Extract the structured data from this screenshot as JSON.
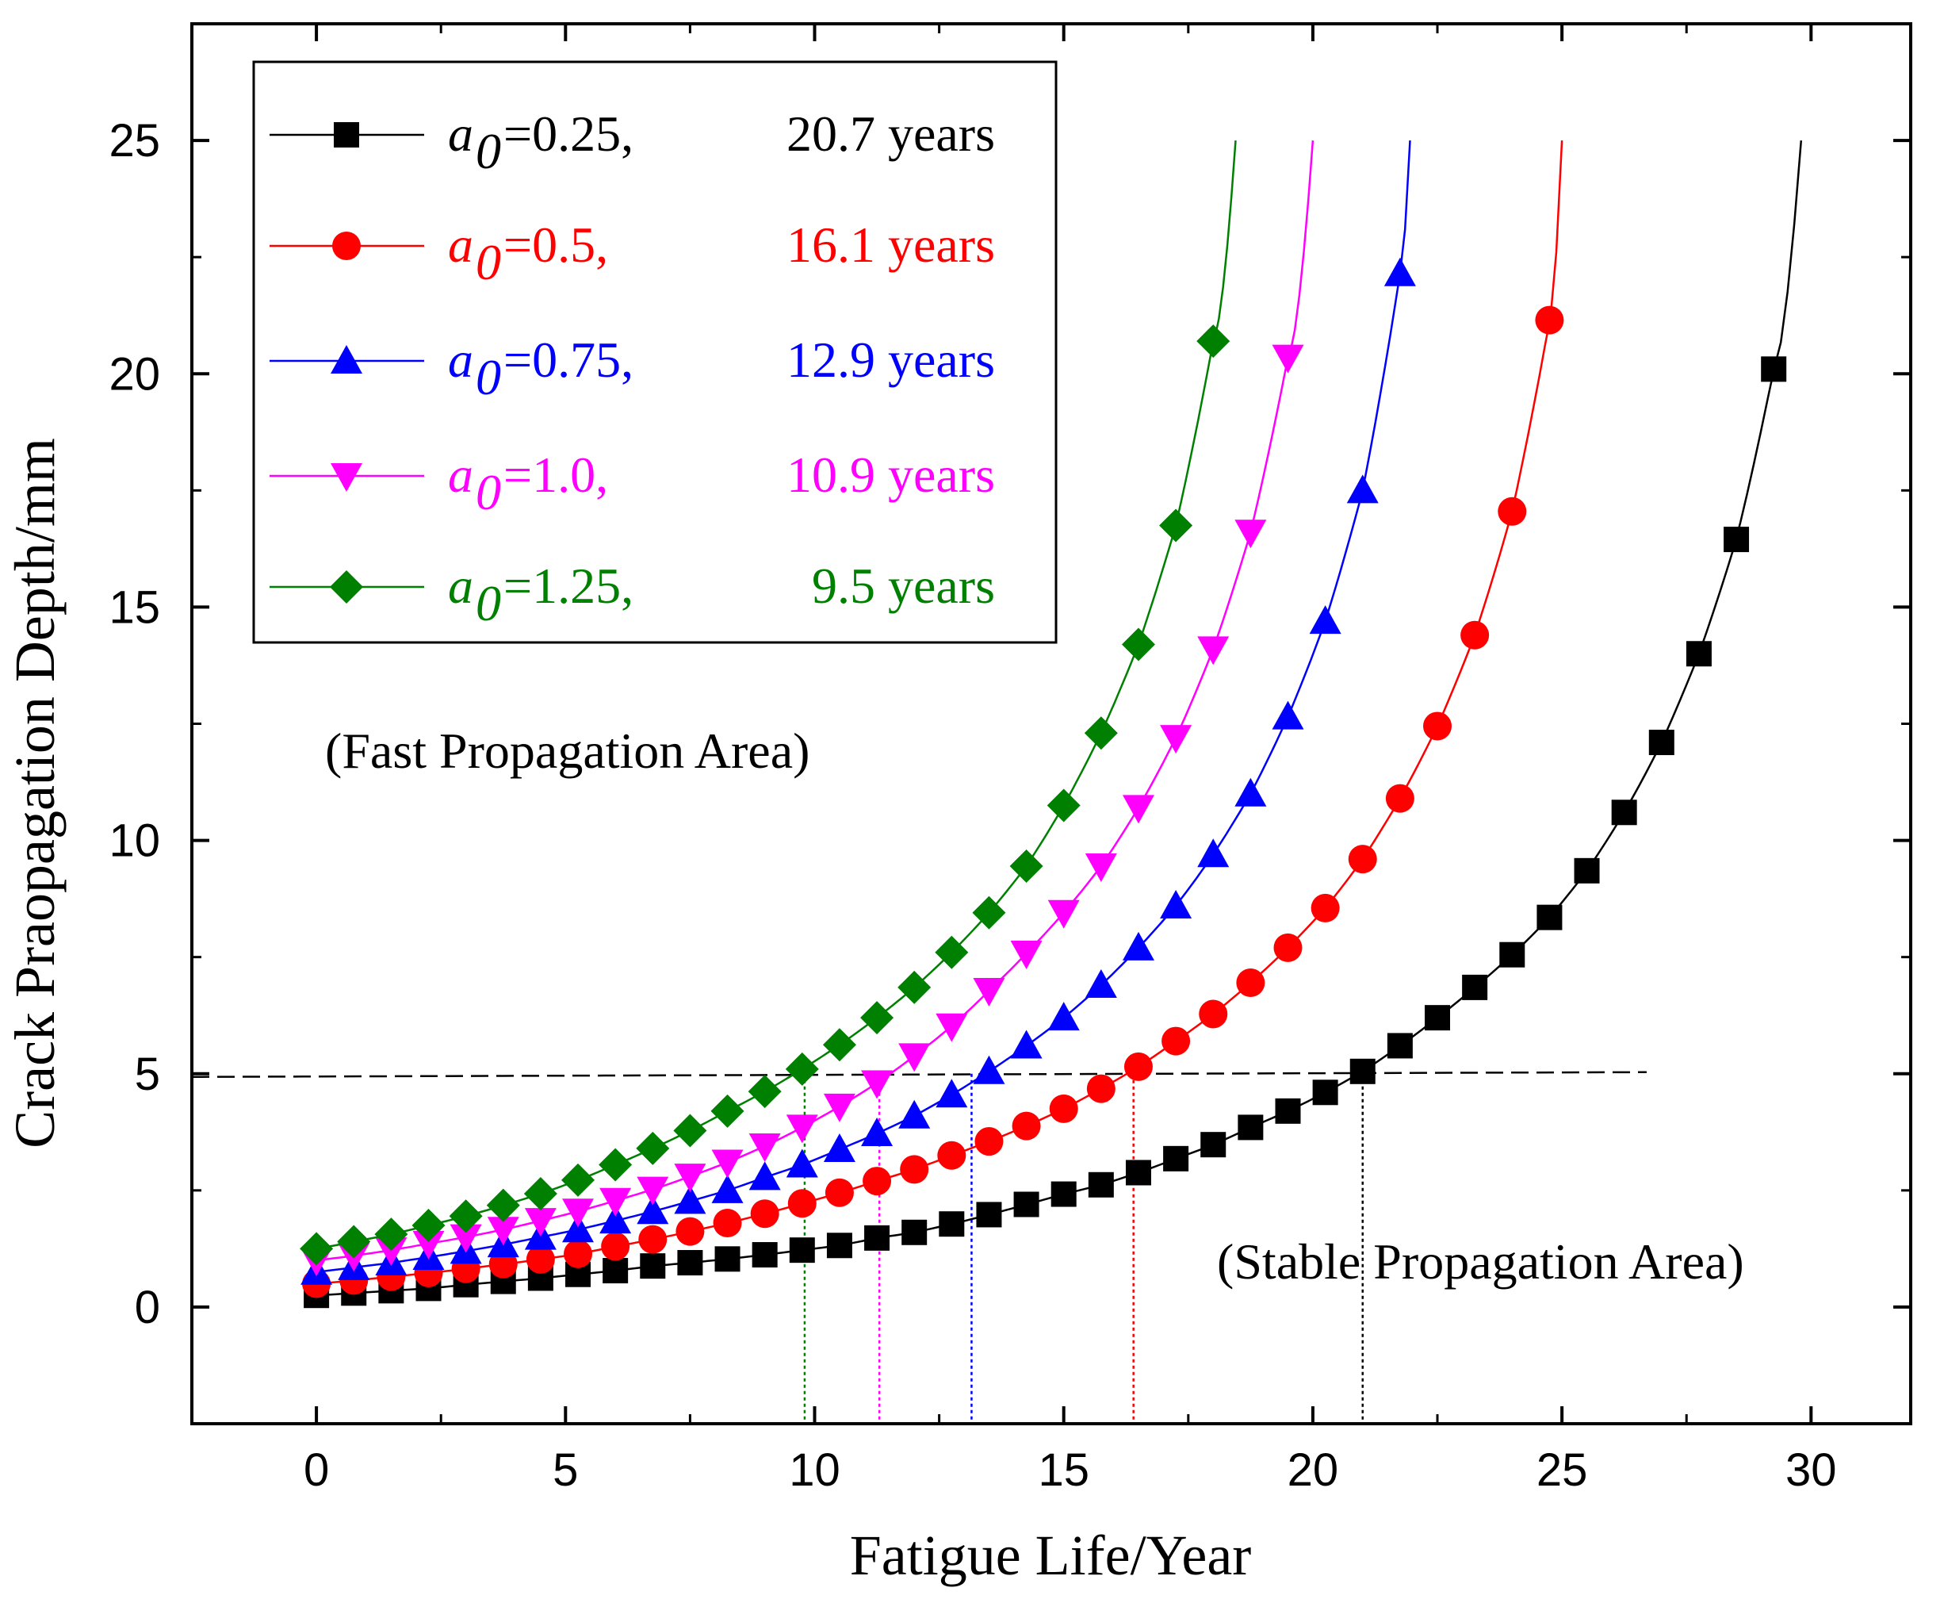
{
  "chart_data": {
    "type": "line",
    "xlabel": "Fatigue Life/Year",
    "ylabel": "Crack Praopagation Depth/mm",
    "xlim": [
      -2.5,
      32
    ],
    "ylim": [
      -2.5,
      27.5
    ],
    "xticks": [
      0,
      5,
      10,
      15,
      20,
      25,
      30
    ],
    "yticks": [
      0,
      5,
      10,
      15,
      20,
      25
    ],
    "xtick_labels": [
      "0",
      "5",
      "10",
      "15",
      "20",
      "25",
      "30"
    ],
    "ytick_labels": [
      "0",
      "5",
      "10",
      "15",
      "20",
      "25"
    ],
    "grid": false,
    "legend_position": "top-left",
    "threshold_line": {
      "y": 5,
      "x_range": [
        -2.5,
        26.7
      ],
      "style": "dashed"
    },
    "annotations": {
      "fast": "(Fast Propagation Area)",
      "stable": "(Stable Propagation Area)"
    },
    "series": [
      {
        "name": "a0=0.25",
        "label_var": "a",
        "label_sub": "0",
        "label_value": "=0.25,",
        "label_life": "20.7 years",
        "color": "#000000",
        "marker": "square",
        "a0": 0.25,
        "x_end": 29.8,
        "cross_x": 21.0,
        "x": [
          0,
          0.75,
          1.5,
          2.25,
          3.0,
          3.75,
          4.5,
          5.25,
          6.0,
          6.75,
          7.5,
          8.25,
          9.0,
          9.75,
          10.5,
          11.25,
          12.0,
          12.75,
          13.5,
          14.25,
          15.0,
          15.75,
          16.5,
          17.25,
          18.0,
          18.75,
          19.5,
          20.25,
          21.0,
          21.75,
          22.5,
          23.25,
          24.0,
          24.75,
          25.5,
          26.25,
          27.0,
          27.75,
          28.5,
          29.25
        ],
        "y": [
          0.25,
          0.3,
          0.35,
          0.4,
          0.48,
          0.55,
          0.62,
          0.7,
          0.78,
          0.88,
          0.95,
          1.03,
          1.12,
          1.22,
          1.32,
          1.48,
          1.6,
          1.78,
          1.98,
          2.2,
          2.42,
          2.62,
          2.88,
          3.18,
          3.48,
          3.85,
          4.2,
          4.6,
          5.05,
          5.6,
          6.2,
          6.85,
          7.55,
          8.35,
          9.35,
          10.6,
          12.1,
          14.0,
          16.45,
          20.1
        ]
      },
      {
        "name": "a0=0.5",
        "label_var": "a",
        "label_sub": "0",
        "label_value": "=0.5,",
        "label_life": "16.1 years",
        "color": "#ff0000",
        "marker": "circle",
        "a0": 0.5,
        "x_end": 25.0,
        "cross_x": 16.4,
        "x": [
          0,
          0.75,
          1.5,
          2.25,
          3.0,
          3.75,
          4.5,
          5.25,
          6.0,
          6.75,
          7.5,
          8.25,
          9.0,
          9.75,
          10.5,
          11.25,
          12.0,
          12.75,
          13.5,
          14.25,
          15.0,
          15.75,
          16.5,
          17.25,
          18.0,
          18.75,
          19.5,
          20.25,
          21.0,
          21.75,
          22.5,
          23.25,
          24.0,
          24.75
        ],
        "y": [
          0.5,
          0.57,
          0.65,
          0.73,
          0.82,
          0.92,
          1.02,
          1.14,
          1.3,
          1.45,
          1.62,
          1.8,
          2.0,
          2.22,
          2.45,
          2.7,
          2.95,
          3.25,
          3.55,
          3.88,
          4.25,
          4.68,
          5.15,
          5.7,
          6.28,
          6.95,
          7.7,
          8.55,
          9.6,
          10.9,
          12.45,
          14.4,
          17.05,
          21.15
        ]
      },
      {
        "name": "a0=0.75",
        "label_var": "a",
        "label_sub": "0",
        "label_value": "=0.75,",
        "label_life": "12.9 years",
        "color": "#0000ff",
        "marker": "triangle-up",
        "a0": 0.75,
        "x_end": 21.95,
        "cross_x": 13.15,
        "x": [
          0,
          0.75,
          1.5,
          2.25,
          3.0,
          3.75,
          4.5,
          5.25,
          6.0,
          6.75,
          7.5,
          8.25,
          9.0,
          9.75,
          10.5,
          11.25,
          12.0,
          12.75,
          13.5,
          14.25,
          15.0,
          15.75,
          16.5,
          17.25,
          18.0,
          18.75,
          19.5,
          20.25,
          21.0,
          21.75
        ],
        "y": [
          0.75,
          0.85,
          0.95,
          1.07,
          1.2,
          1.34,
          1.5,
          1.66,
          1.85,
          2.05,
          2.27,
          2.5,
          2.78,
          3.05,
          3.38,
          3.72,
          4.1,
          4.55,
          5.05,
          5.6,
          6.2,
          6.9,
          7.7,
          8.6,
          9.7,
          11.0,
          12.65,
          14.7,
          17.5,
          22.15
        ]
      },
      {
        "name": "a0=1.0",
        "label_var": "a",
        "label_sub": "0",
        "label_value": "=1.0,",
        "label_life": "10.9 years",
        "color": "#ff00ff",
        "marker": "triangle-down",
        "a0": 1.0,
        "x_end": 20.0,
        "cross_x": 11.3,
        "x": [
          0,
          0.75,
          1.5,
          2.25,
          3.0,
          3.75,
          4.5,
          5.25,
          6.0,
          6.75,
          7.5,
          8.25,
          9.0,
          9.75,
          10.5,
          11.25,
          12.0,
          12.75,
          13.5,
          14.25,
          15.0,
          15.75,
          16.5,
          17.25,
          18.0,
          18.75,
          19.5
        ],
        "y": [
          1.0,
          1.1,
          1.22,
          1.36,
          1.5,
          1.66,
          1.85,
          2.05,
          2.28,
          2.52,
          2.8,
          3.1,
          3.45,
          3.85,
          4.3,
          4.8,
          5.38,
          6.02,
          6.78,
          7.58,
          8.45,
          9.45,
          10.7,
          12.2,
          14.1,
          16.6,
          20.35
        ]
      },
      {
        "name": "a0=1.25",
        "label_var": "a",
        "label_sub": "0",
        "label_value": "=1.25,",
        "label_life": "9.5 years",
        "color": "#008000",
        "marker": "diamond",
        "a0": 1.25,
        "x_end": 18.45,
        "cross_x": 9.8,
        "x": [
          0,
          0.75,
          1.5,
          2.25,
          3.0,
          3.75,
          4.5,
          5.25,
          6.0,
          6.75,
          7.5,
          8.25,
          9.0,
          9.75,
          10.5,
          11.25,
          12.0,
          12.75,
          13.5,
          14.25,
          15.0,
          15.75,
          16.5,
          17.25,
          18.0
        ],
        "y": [
          1.25,
          1.4,
          1.56,
          1.75,
          1.95,
          2.18,
          2.43,
          2.72,
          3.05,
          3.4,
          3.78,
          4.2,
          4.62,
          5.1,
          5.62,
          6.2,
          6.85,
          7.6,
          8.45,
          9.45,
          10.75,
          12.3,
          14.2,
          16.75,
          20.7
        ]
      }
    ]
  }
}
